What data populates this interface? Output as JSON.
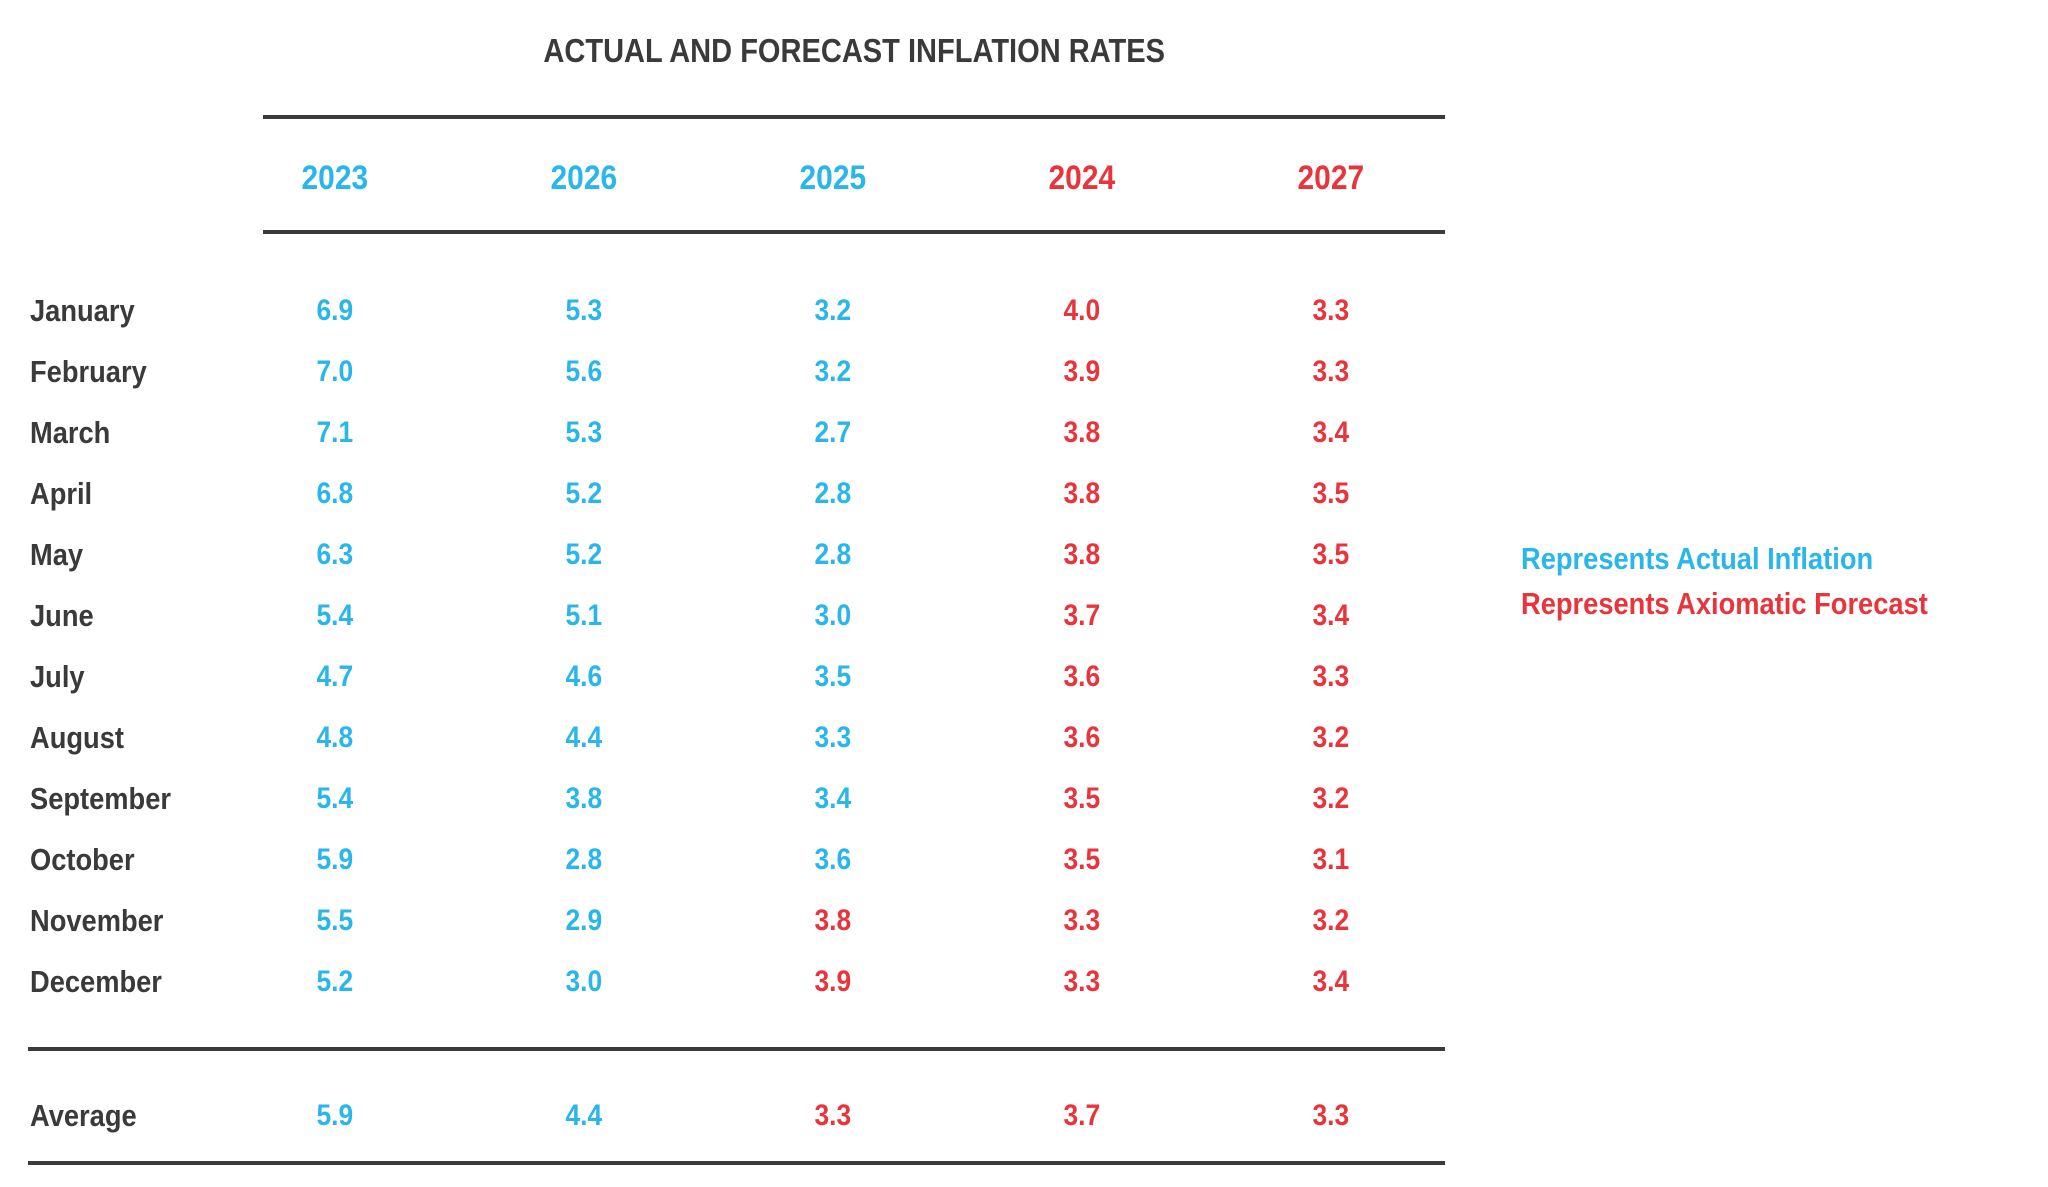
{
  "title": "ACTUAL AND FORECAST INFLATION RATES",
  "colors": {
    "actual": "#29b6ea",
    "forecast": "#ea343c",
    "text": "#3a3a3a",
    "background": "#ffffff"
  },
  "legend": {
    "actual_label": "Represents Actual Inflation",
    "forecast_label": "Represents Axiomatic Forecast"
  },
  "chart_data": {
    "type": "table",
    "title": "ACTUAL AND FORECAST INFLATION RATES",
    "columns": [
      {
        "label": "2023",
        "series_type": "actual"
      },
      {
        "label": "2026",
        "series_type": "actual"
      },
      {
        "label": "2025",
        "series_type": "actual"
      },
      {
        "label": "2024",
        "series_type": "forecast"
      },
      {
        "label": "2027",
        "series_type": "forecast"
      }
    ],
    "rows": [
      {
        "month": "January",
        "cells": [
          {
            "value": "6.9",
            "type": "actual"
          },
          {
            "value": "5.3",
            "type": "actual"
          },
          {
            "value": "3.2",
            "type": "actual"
          },
          {
            "value": "4.0",
            "type": "forecast"
          },
          {
            "value": "3.3",
            "type": "forecast"
          }
        ]
      },
      {
        "month": "February",
        "cells": [
          {
            "value": "7.0",
            "type": "actual"
          },
          {
            "value": "5.6",
            "type": "actual"
          },
          {
            "value": "3.2",
            "type": "actual"
          },
          {
            "value": "3.9",
            "type": "forecast"
          },
          {
            "value": "3.3",
            "type": "forecast"
          }
        ]
      },
      {
        "month": "March",
        "cells": [
          {
            "value": "7.1",
            "type": "actual"
          },
          {
            "value": "5.3",
            "type": "actual"
          },
          {
            "value": "2.7",
            "type": "actual"
          },
          {
            "value": "3.8",
            "type": "forecast"
          },
          {
            "value": "3.4",
            "type": "forecast"
          }
        ]
      },
      {
        "month": "April",
        "cells": [
          {
            "value": "6.8",
            "type": "actual"
          },
          {
            "value": "5.2",
            "type": "actual"
          },
          {
            "value": "2.8",
            "type": "actual"
          },
          {
            "value": "3.8",
            "type": "forecast"
          },
          {
            "value": "3.5",
            "type": "forecast"
          }
        ]
      },
      {
        "month": "May",
        "cells": [
          {
            "value": "6.3",
            "type": "actual"
          },
          {
            "value": "5.2",
            "type": "actual"
          },
          {
            "value": "2.8",
            "type": "actual"
          },
          {
            "value": "3.8",
            "type": "forecast"
          },
          {
            "value": "3.5",
            "type": "forecast"
          }
        ]
      },
      {
        "month": "June",
        "cells": [
          {
            "value": "5.4",
            "type": "actual"
          },
          {
            "value": "5.1",
            "type": "actual"
          },
          {
            "value": "3.0",
            "type": "actual"
          },
          {
            "value": "3.7",
            "type": "forecast"
          },
          {
            "value": "3.4",
            "type": "forecast"
          }
        ]
      },
      {
        "month": "July",
        "cells": [
          {
            "value": "4.7",
            "type": "actual"
          },
          {
            "value": "4.6",
            "type": "actual"
          },
          {
            "value": "3.5",
            "type": "actual"
          },
          {
            "value": "3.6",
            "type": "forecast"
          },
          {
            "value": "3.3",
            "type": "forecast"
          }
        ]
      },
      {
        "month": "August",
        "cells": [
          {
            "value": "4.8",
            "type": "actual"
          },
          {
            "value": "4.4",
            "type": "actual"
          },
          {
            "value": "3.3",
            "type": "actual"
          },
          {
            "value": "3.6",
            "type": "forecast"
          },
          {
            "value": "3.2",
            "type": "forecast"
          }
        ]
      },
      {
        "month": "September",
        "cells": [
          {
            "value": "5.4",
            "type": "actual"
          },
          {
            "value": "3.8",
            "type": "actual"
          },
          {
            "value": "3.4",
            "type": "actual"
          },
          {
            "value": "3.5",
            "type": "forecast"
          },
          {
            "value": "3.2",
            "type": "forecast"
          }
        ]
      },
      {
        "month": "October",
        "cells": [
          {
            "value": "5.9",
            "type": "actual"
          },
          {
            "value": "2.8",
            "type": "actual"
          },
          {
            "value": "3.6",
            "type": "actual"
          },
          {
            "value": "3.5",
            "type": "forecast"
          },
          {
            "value": "3.1",
            "type": "forecast"
          }
        ]
      },
      {
        "month": "November",
        "cells": [
          {
            "value": "5.5",
            "type": "actual"
          },
          {
            "value": "2.9",
            "type": "actual"
          },
          {
            "value": "3.8",
            "type": "forecast"
          },
          {
            "value": "3.3",
            "type": "forecast"
          },
          {
            "value": "3.2",
            "type": "forecast"
          }
        ]
      },
      {
        "month": "December",
        "cells": [
          {
            "value": "5.2",
            "type": "actual"
          },
          {
            "value": "3.0",
            "type": "actual"
          },
          {
            "value": "3.9",
            "type": "forecast"
          },
          {
            "value": "3.3",
            "type": "forecast"
          },
          {
            "value": "3.4",
            "type": "forecast"
          }
        ]
      }
    ],
    "average_row": {
      "label": "Average",
      "cells": [
        {
          "value": "5.9",
          "type": "actual"
        },
        {
          "value": "4.4",
          "type": "actual"
        },
        {
          "value": "3.3",
          "type": "forecast"
        },
        {
          "value": "3.7",
          "type": "forecast"
        },
        {
          "value": "3.3",
          "type": "forecast"
        }
      ]
    },
    "legend_position": "right-middle",
    "grid": "horizontal-rules-only"
  }
}
